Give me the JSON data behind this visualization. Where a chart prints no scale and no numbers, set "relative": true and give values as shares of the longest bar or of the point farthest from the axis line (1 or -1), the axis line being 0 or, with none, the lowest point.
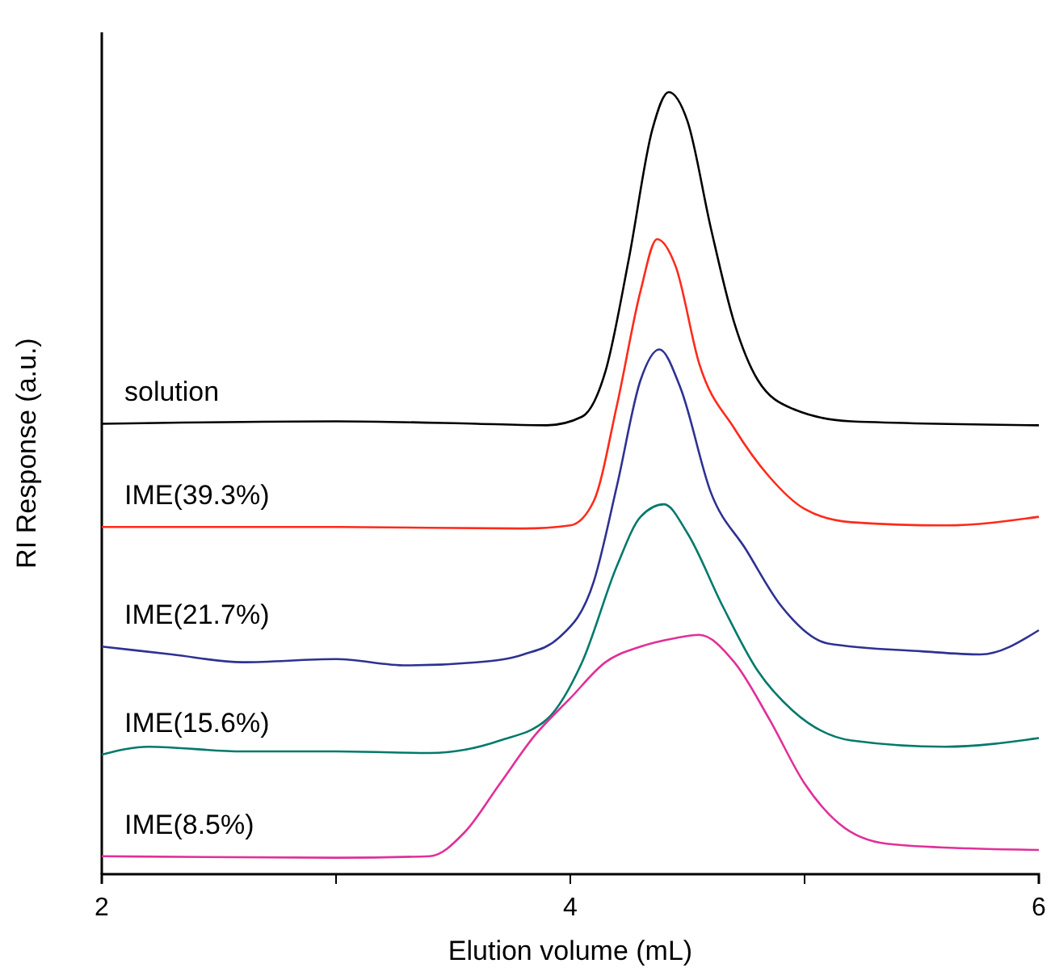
{
  "chart_data": {
    "type": "line",
    "relative": true,
    "xlabel": "Elution volume (mL)",
    "ylabel": "RI Response (a.u.)",
    "xlim": [
      2,
      6
    ],
    "xticks": [
      2,
      {
        "value": 3,
        "label": null
      },
      4,
      {
        "value": 5,
        "label": null
      },
      6
    ],
    "legend": false,
    "grid": false,
    "marker": "none",
    "line_style": "solid",
    "series": [
      {
        "name": "solution",
        "color": "#000000",
        "x": [
          2.0,
          3.0,
          3.6,
          3.9,
          4.05,
          4.15,
          4.25,
          4.35,
          4.42,
          4.5,
          4.6,
          4.7,
          4.8,
          4.95,
          5.2,
          6.0
        ],
        "values": [
          0.576,
          0.579,
          0.576,
          0.574,
          0.585,
          0.643,
          0.787,
          0.952,
          1.0,
          0.963,
          0.826,
          0.705,
          0.632,
          0.595,
          0.579,
          0.574
        ]
      },
      {
        "name": "IME(39.3%)",
        "color": "#ff2a1a",
        "x": [
          2.0,
          3.0,
          3.8,
          4.0,
          4.1,
          4.2,
          4.3,
          4.37,
          4.45,
          4.55,
          4.7,
          4.85,
          5.0,
          5.2,
          5.6,
          6.0
        ],
        "values": [
          0.444,
          0.444,
          0.442,
          0.446,
          0.477,
          0.601,
          0.746,
          0.812,
          0.777,
          0.653,
          0.57,
          0.508,
          0.467,
          0.45,
          0.446,
          0.457
        ]
      },
      {
        "name": "IME(21.7%)",
        "color": "#2e3192",
        "x": [
          2.0,
          2.3,
          2.6,
          3.0,
          3.3,
          3.6,
          3.8,
          3.95,
          4.1,
          4.2,
          4.3,
          4.38,
          4.47,
          4.6,
          4.75,
          4.9,
          5.1,
          5.5,
          5.75,
          6.0
        ],
        "values": [
          0.291,
          0.281,
          0.271,
          0.275,
          0.267,
          0.271,
          0.281,
          0.302,
          0.374,
          0.498,
          0.632,
          0.671,
          0.622,
          0.488,
          0.415,
          0.343,
          0.295,
          0.285,
          0.281,
          0.312
        ]
      },
      {
        "name": "IME(15.6%)",
        "color": "#00796b",
        "x": [
          2.0,
          2.2,
          2.6,
          3.0,
          3.4,
          3.7,
          3.9,
          4.05,
          4.2,
          4.3,
          4.4,
          4.5,
          4.65,
          4.8,
          4.95,
          5.2,
          5.6,
          6.0
        ],
        "values": [
          0.153,
          0.163,
          0.157,
          0.157,
          0.155,
          0.171,
          0.198,
          0.271,
          0.395,
          0.457,
          0.473,
          0.436,
          0.343,
          0.26,
          0.209,
          0.171,
          0.163,
          0.174
        ]
      },
      {
        "name": "IME(8.5%)",
        "color": "#e0309a",
        "x": [
          2.0,
          3.0,
          3.4,
          3.55,
          3.7,
          3.85,
          4.0,
          4.15,
          4.3,
          4.45,
          4.55,
          4.7,
          4.85,
          5.0,
          5.15,
          5.35,
          5.7,
          6.0
        ],
        "values": [
          0.023,
          0.021,
          0.023,
          0.054,
          0.116,
          0.178,
          0.225,
          0.271,
          0.291,
          0.302,
          0.306,
          0.271,
          0.198,
          0.116,
          0.064,
          0.039,
          0.033,
          0.031
        ]
      }
    ]
  }
}
